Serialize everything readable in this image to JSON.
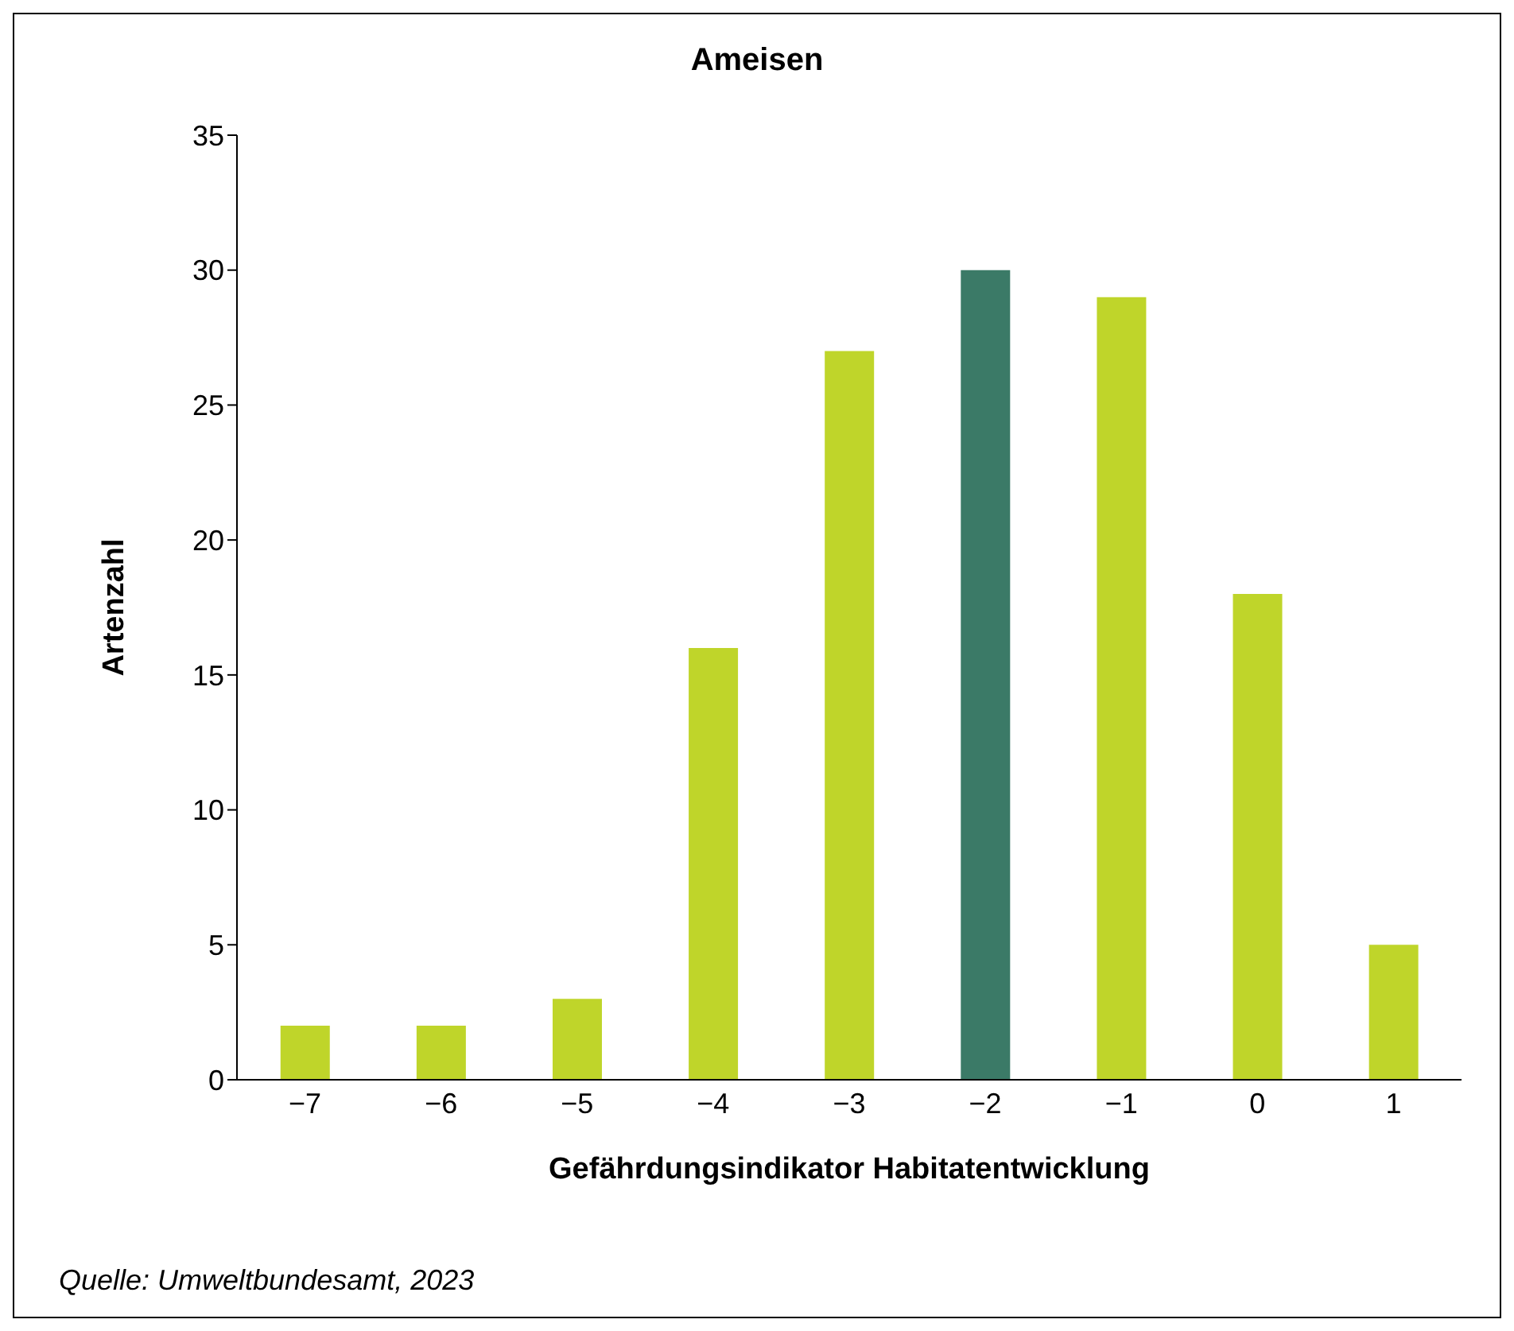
{
  "chart_data": {
    "type": "bar",
    "title": "Ameisen",
    "xlabel": "Gefährdungsindikator Habitatentwicklung",
    "ylabel": "Artenzahl",
    "categories": [
      "−7",
      "−6",
      "−5",
      "−4",
      "−3",
      "−2",
      "−1",
      "0",
      "1"
    ],
    "values": [
      2,
      2,
      3,
      16,
      27,
      30,
      29,
      18,
      5
    ],
    "colors": [
      "#bfd52a",
      "#bfd52a",
      "#bfd52a",
      "#bfd52a",
      "#bfd52a",
      "#3b7a67",
      "#bfd52a",
      "#bfd52a",
      "#bfd52a"
    ],
    "ylim": [
      0,
      35
    ],
    "yticks": [
      0,
      5,
      10,
      15,
      20,
      25,
      30,
      35
    ],
    "grid": false,
    "legend": false,
    "annotations": [
      "Quelle: Umweltbundesamt, 2023"
    ]
  }
}
